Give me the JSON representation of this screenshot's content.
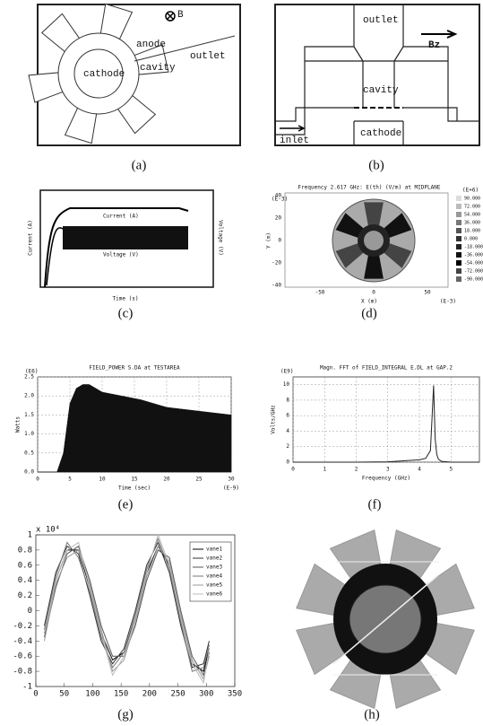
{
  "captions": [
    "(a)",
    "(b)",
    "(c)",
    "(d)",
    "(e)",
    "(f)",
    "(g)",
    "(h)"
  ],
  "diagram_a": {
    "labels": [
      "B",
      "anode",
      "outlet",
      "cavity",
      "cathode"
    ]
  },
  "diagram_b": {
    "labels": [
      "outlet",
      "Bz",
      "cavity",
      "inlet",
      "cathode"
    ]
  },
  "diagram_c": {
    "y_label": "Current (A)",
    "y2_label": "Voltage (V)",
    "x_label": "Time (s)",
    "curve_labels": [
      "Current (A)",
      "Voltage (V)"
    ]
  },
  "diagram_d": {
    "title": "Frequency 2.617 GHz: E(th) (V/m) at MIDPLANE",
    "y_label": "Y (m)",
    "y_unit": "(E-3)",
    "x_label": "X (m)",
    "x_unit": "(E-3)",
    "yticks": [
      "40",
      "20",
      "0",
      "-20",
      "-40"
    ],
    "xticks": [
      "-50",
      "0",
      "50"
    ],
    "legend_unit": "(E+6)",
    "legend": [
      "90.000",
      "72.000",
      "54.000",
      "36.000",
      "18.000",
      "0.000",
      "-18.000",
      "-36.000",
      "-54.000",
      "-72.000",
      "-90.000"
    ]
  },
  "chart_data": [
    {
      "type": "area",
      "title": "FIELD_POWER S.DA at TESTAREA",
      "y_unit": "(E6)",
      "y_label": "Watts",
      "x_label": "Time (sec)",
      "x_unit": "(E-9)",
      "xlim": [
        0,
        30
      ],
      "xticks": [
        0,
        5,
        10,
        15,
        20,
        25,
        30
      ],
      "ylim": [
        0,
        2.5
      ],
      "yticks": [
        {
          "value": 0,
          "label": "0.0"
        },
        0.5,
        {
          "value": 1,
          "label": "1.0"
        },
        1.5,
        {
          "value": 2,
          "label": "2.0"
        },
        2.5
      ],
      "grid": true,
      "series": [
        {
          "color": "#111111",
          "x": [
            0,
            3,
            4,
            5,
            6,
            7,
            8,
            10,
            13,
            16,
            20,
            25,
            30
          ],
          "values": [
            0,
            0,
            0.5,
            1.8,
            2.2,
            2.3,
            2.3,
            2.1,
            2.0,
            1.9,
            1.7,
            1.6,
            1.5
          ]
        }
      ]
    },
    {
      "type": "line",
      "title": "Magn. FFT of FIELD_INTEGRAL E.DL at GAP.2",
      "y_unit": "(E9)",
      "y_label": "Volts/GHz",
      "x_label": "Frequency (GHz)",
      "xlim": [
        0,
        5.9
      ],
      "xticks": [
        0,
        1,
        2,
        3,
        4,
        5
      ],
      "ylim": [
        0,
        11
      ],
      "yticks": [
        0,
        2,
        4,
        6,
        8,
        10
      ],
      "grid": true,
      "series": [
        {
          "color": "#222222",
          "x": [
            0,
            1,
            2,
            3,
            4,
            4.2,
            4.35,
            4.45,
            4.5,
            4.55,
            4.6,
            4.7,
            5,
            5.9
          ],
          "values": [
            0,
            0,
            0,
            0.05,
            0.3,
            0.5,
            1.5,
            9.9,
            3,
            1,
            0.4,
            0.1,
            0,
            0
          ]
        }
      ]
    },
    {
      "type": "line",
      "y_unit": "x 10⁴",
      "xlim": [
        0,
        350
      ],
      "xticks": [
        0,
        50,
        100,
        150,
        200,
        250,
        300,
        350
      ],
      "ylim": [
        -1,
        1
      ],
      "yticks": [
        -1,
        -0.8,
        -0.6,
        -0.4,
        -0.2,
        0,
        0.2,
        0.4,
        0.6,
        0.8,
        1
      ],
      "grid": false,
      "series": [
        {
          "name": "vane1",
          "color": "#000000",
          "x": [
            15,
            35,
            55,
            75,
            95,
            115,
            135,
            155,
            175,
            195,
            215,
            235,
            255,
            275,
            295,
            305
          ],
          "values": [
            -0.3,
            0.4,
            0.8,
            0.8,
            0.3,
            -0.3,
            -0.65,
            -0.55,
            -0.1,
            0.5,
            0.85,
            0.6,
            -0.1,
            -0.7,
            -0.8,
            -0.5
          ]
        },
        {
          "name": "vane2",
          "color": "#333333",
          "x": [
            15,
            35,
            55,
            75,
            95,
            115,
            135,
            155,
            175,
            195,
            215,
            235,
            255,
            275,
            295,
            305
          ],
          "values": [
            -0.2,
            0.5,
            0.85,
            0.75,
            0.2,
            -0.4,
            -0.7,
            -0.5,
            0,
            0.6,
            0.9,
            0.5,
            -0.2,
            -0.75,
            -0.7,
            -0.4
          ]
        },
        {
          "name": "vane3",
          "color": "#555555",
          "x": [
            15,
            35,
            55,
            75,
            95,
            115,
            135,
            155,
            175,
            195,
            215,
            235,
            255,
            275,
            295,
            305
          ],
          "values": [
            -0.35,
            0.3,
            0.75,
            0.85,
            0.4,
            -0.2,
            -0.6,
            -0.6,
            -0.2,
            0.4,
            0.8,
            0.7,
            0,
            -0.6,
            -0.85,
            -0.55
          ]
        },
        {
          "name": "vane4",
          "color": "#777777",
          "x": [
            15,
            35,
            55,
            75,
            95,
            115,
            135,
            155,
            175,
            195,
            215,
            235,
            255,
            275,
            295,
            305
          ],
          "values": [
            -0.25,
            0.45,
            0.9,
            0.7,
            0.25,
            -0.35,
            -0.75,
            -0.55,
            -0.05,
            0.55,
            0.95,
            0.55,
            -0.15,
            -0.8,
            -0.75,
            -0.45
          ]
        },
        {
          "name": "vane5",
          "color": "#999999",
          "x": [
            15,
            35,
            55,
            75,
            95,
            115,
            135,
            155,
            175,
            195,
            215,
            235,
            255,
            275,
            295,
            305
          ],
          "values": [
            -0.4,
            0.35,
            0.7,
            0.8,
            0.35,
            -0.25,
            -0.8,
            -0.65,
            -0.15,
            0.45,
            0.85,
            0.65,
            -0.05,
            -0.65,
            -0.9,
            -0.6
          ]
        },
        {
          "name": "vane6",
          "color": "#bbbbbb",
          "x": [
            15,
            35,
            55,
            75,
            95,
            115,
            135,
            155,
            175,
            195,
            215,
            235,
            255,
            275,
            295,
            305
          ],
          "values": [
            -0.3,
            0.4,
            0.8,
            0.9,
            0.3,
            -0.3,
            -0.85,
            -0.6,
            -0.1,
            0.5,
            1.0,
            0.6,
            -0.1,
            -0.7,
            -0.95,
            -0.5
          ]
        }
      ]
    }
  ]
}
